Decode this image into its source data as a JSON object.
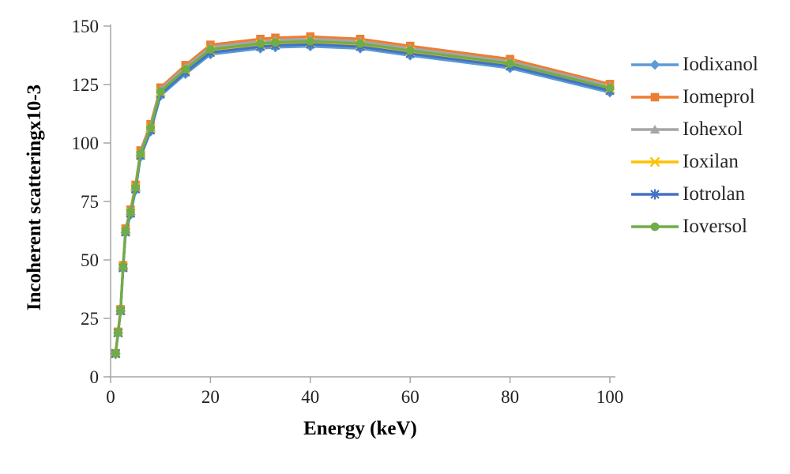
{
  "chart_data": {
    "type": "line",
    "title": "",
    "xlabel": "Energy (keV)",
    "ylabel": "Incoherent scatteringx10-3",
    "xlim": [
      0,
      100
    ],
    "ylim": [
      0,
      150
    ],
    "x_ticks": [
      0,
      20,
      40,
      60,
      80,
      100
    ],
    "y_ticks": [
      0,
      25,
      50,
      75,
      100,
      125,
      150
    ],
    "grid": false,
    "legend_position": "right",
    "axis_color": "#A6A6A6",
    "tick_text_color": "#1F1F1F",
    "x": [
      1,
      1.5,
      2,
      2.5,
      3,
      4,
      5,
      6,
      8,
      10,
      15,
      20,
      30,
      33,
      40,
      50,
      60,
      80,
      100
    ],
    "series": [
      {
        "name": "Iodixanol",
        "color": "#5B9BD5",
        "marker": "diamond",
        "values": [
          9.9,
          18.7,
          28.1,
          46.3,
          61.6,
          69.4,
          79.8,
          94.1,
          104.9,
          120.2,
          129.5,
          137.9,
          140.4,
          140.9,
          141.3,
          140.4,
          137.4,
          132.0,
          121.6
        ]
      },
      {
        "name": "Iomeprol",
        "color": "#ED7D31",
        "marker": "square",
        "values": [
          10.1,
          19.3,
          28.9,
          47.7,
          63.4,
          71.5,
          82.1,
          96.8,
          108.0,
          123.7,
          133.3,
          142.0,
          144.5,
          145.0,
          145.5,
          144.5,
          141.5,
          135.9,
          125.2
        ]
      },
      {
        "name": "Iohexol",
        "color": "#A5A5A5",
        "marker": "triangle",
        "values": [
          10.1,
          19.1,
          28.7,
          47.3,
          62.9,
          71.0,
          81.6,
          96.2,
          107.2,
          122.9,
          132.4,
          141.0,
          143.5,
          144.0,
          144.5,
          143.5,
          140.5,
          134.9,
          124.4
        ]
      },
      {
        "name": "Ioxilan",
        "color": "#FFC000",
        "marker": "x",
        "values": [
          10.0,
          18.9,
          28.4,
          46.9,
          62.3,
          70.3,
          80.8,
          95.2,
          106.2,
          121.6,
          131.1,
          139.6,
          142.1,
          142.6,
          143.1,
          142.1,
          139.1,
          133.6,
          123.1
        ]
      },
      {
        "name": "Iotrolan",
        "color": "#4472C4",
        "marker": "asterisk",
        "values": [
          9.9,
          18.8,
          28.2,
          46.6,
          61.9,
          69.9,
          80.3,
          94.6,
          105.5,
          120.9,
          130.3,
          138.7,
          141.2,
          141.7,
          142.2,
          141.2,
          138.2,
          132.8,
          122.4
        ]
      },
      {
        "name": "Ioversol",
        "color": "#70AD47",
        "marker": "circle",
        "values": [
          10.0,
          19.0,
          28.5,
          47.0,
          62.5,
          70.5,
          81.0,
          95.5,
          106.5,
          122.0,
          131.5,
          140.0,
          142.5,
          143.0,
          143.5,
          142.5,
          139.5,
          134.0,
          123.5
        ]
      }
    ]
  }
}
